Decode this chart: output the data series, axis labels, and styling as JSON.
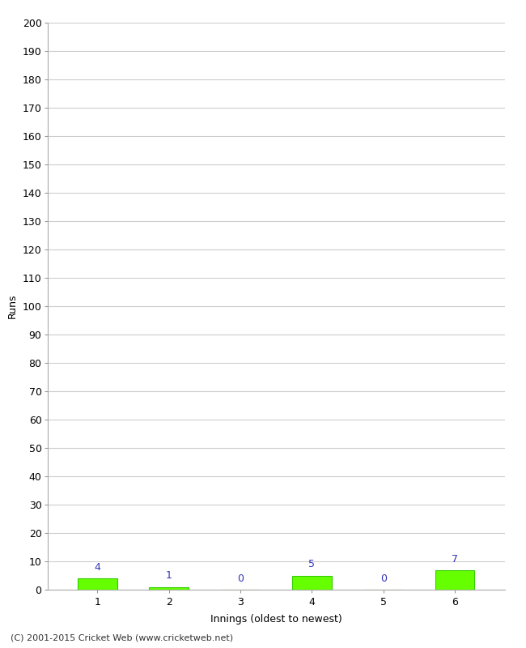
{
  "innings": [
    1,
    2,
    3,
    4,
    5,
    6
  ],
  "runs": [
    4,
    1,
    0,
    5,
    0,
    7
  ],
  "bar_color": "#66ff00",
  "bar_edge_color": "#33cc00",
  "label_color": "#3333bb",
  "ylim": [
    0,
    200
  ],
  "yticks": [
    0,
    10,
    20,
    30,
    40,
    50,
    60,
    70,
    80,
    90,
    100,
    110,
    120,
    130,
    140,
    150,
    160,
    170,
    180,
    190,
    200
  ],
  "ylabel": "Runs",
  "xlabel": "Innings (oldest to newest)",
  "footer": "(C) 2001-2015 Cricket Web (www.cricketweb.net)",
  "background_color": "#ffffff",
  "grid_color": "#cccccc",
  "label_fontsize": 9,
  "tick_fontsize": 9,
  "footer_fontsize": 8,
  "bar_width": 0.55,
  "xlim_left": 0.3,
  "xlim_right": 6.7
}
